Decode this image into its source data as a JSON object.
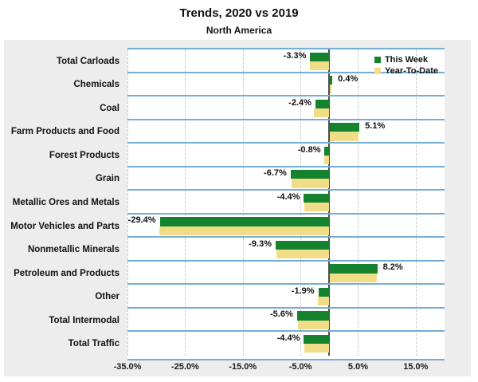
{
  "header": {
    "title": "Trends, 2020 vs 2019",
    "subtitle": "North America"
  },
  "colors": {
    "this_week_green": "#15832d",
    "year_to_date_yellow": "#f1dd87",
    "row_separator_blue": "#74aed6",
    "zero_axis": "#4d4d4d",
    "panel_background": "#ededed",
    "gridline": "#c8c8c8"
  },
  "chart_data": {
    "type": "bar",
    "orientation": "horizontal",
    "title": "Trends, 2020 vs 2019",
    "subtitle": "North America",
    "categories": [
      "Total Carloads",
      "Chemicals",
      "Coal",
      "Farm Products and Food",
      "Forest Products",
      "Grain",
      "Metallic Ores and Metals",
      "Motor Vehicles and Parts",
      "Nonmetallic Minerals",
      "Petroleum and Products",
      "Other",
      "Total Intermodal",
      "Total Traffic"
    ],
    "series": [
      {
        "name": "This Week",
        "color": "#15832d",
        "values": [
          -3.3,
          0.4,
          -2.4,
          5.1,
          -0.8,
          -6.7,
          -4.4,
          -29.4,
          -9.3,
          8.2,
          -1.9,
          -5.6,
          -4.4
        ],
        "labels": [
          "-3.3%",
          "0.4%",
          "-2.4%",
          "5.1%",
          "-0.8%",
          "-6.7%",
          "-4.4%",
          "-29.4%",
          "-9.3%",
          "8.2%",
          "-1.9%",
          "-5.6%",
          "-4.4%"
        ]
      },
      {
        "name": "Year-To-Date",
        "color": "#f1dd87",
        "values": [
          -3.4,
          0.3,
          -2.7,
          4.9,
          -0.9,
          -6.6,
          -4.3,
          -29.5,
          -9.2,
          8.1,
          -2.0,
          -5.4,
          -4.3
        ],
        "labels": []
      }
    ],
    "xlim": [
      -35,
      20
    ],
    "xticks": [
      {
        "value": -35,
        "label": "-35.0%"
      },
      {
        "value": -25,
        "label": "-25.0%"
      },
      {
        "value": -15,
        "label": "-15.0%"
      },
      {
        "value": -5,
        "label": "-5.0%"
      },
      {
        "value": 5,
        "label": "5.0%"
      },
      {
        "value": 15,
        "label": "15.0%"
      }
    ],
    "grid": "vertical-dashed-at-ticks",
    "legend_position": "top-right-inside",
    "data_labels": "this-week-series-only"
  }
}
